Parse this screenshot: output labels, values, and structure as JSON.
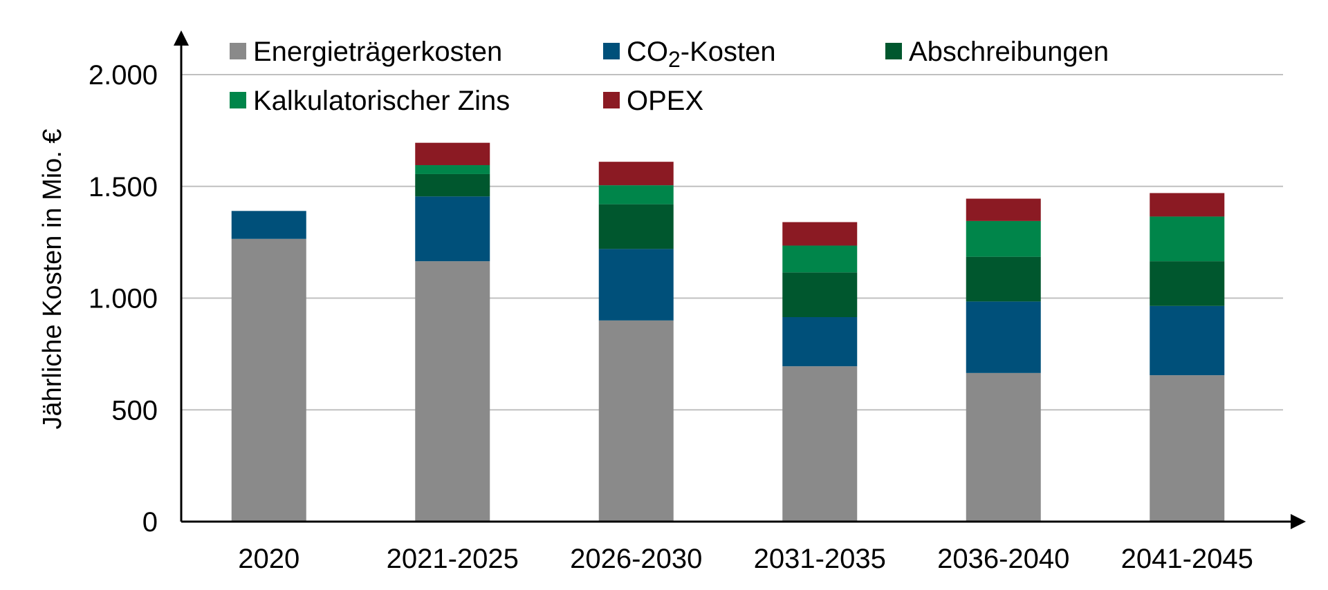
{
  "chart_data": {
    "type": "bar",
    "stacked": true,
    "title": "",
    "xlabel": "",
    "ylabel": "Jährliche Kosten in Mio. €",
    "ylim": [
      0,
      2000
    ],
    "yticks": [
      0,
      500,
      1000,
      1500,
      2000
    ],
    "ytick_labels": [
      "0",
      "500",
      "1.000",
      "1.500",
      "2.000"
    ],
    "grid": true,
    "legend_position": "top",
    "categories": [
      "2020",
      "2021-2025",
      "2026-2030",
      "2031-2035",
      "2036-2040",
      "2041-2045"
    ],
    "series": [
      {
        "name": "Energieträgerkosten",
        "color": "#8a8a8a",
        "values": [
          1265,
          1165,
          900,
          695,
          665,
          655
        ]
      },
      {
        "name": "CO₂-Kosten",
        "legend_text": "CO",
        "legend_subscript": "2",
        "legend_suffix": "-Kosten",
        "color": "#00507a",
        "values": [
          125,
          290,
          320,
          220,
          320,
          310
        ]
      },
      {
        "name": "Abschreibungen",
        "color": "#00572e",
        "values": [
          0,
          100,
          200,
          200,
          200,
          200
        ]
      },
      {
        "name": "Kalkulatorischer Zins",
        "color": "#00854a",
        "values": [
          0,
          40,
          85,
          120,
          160,
          200
        ]
      },
      {
        "name": "OPEX",
        "color": "#8b1a23",
        "values": [
          0,
          100,
          105,
          105,
          100,
          105
        ]
      }
    ]
  }
}
